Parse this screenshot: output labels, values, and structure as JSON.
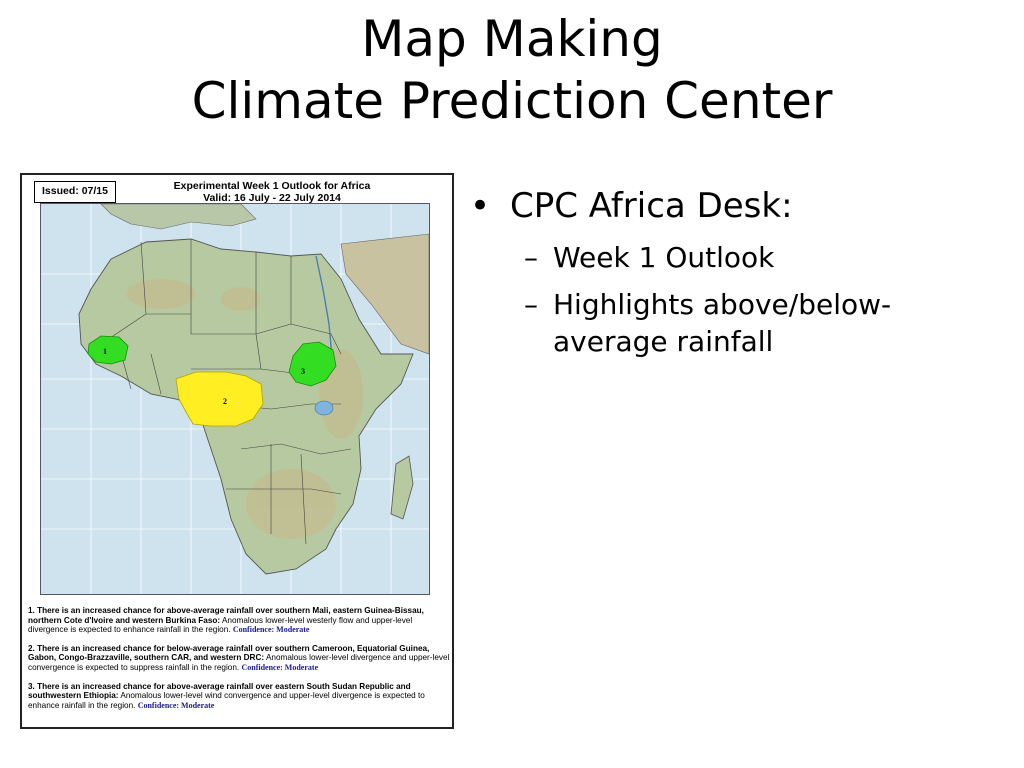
{
  "title": {
    "line1": "Map Making",
    "line2": "Climate Prediction Center"
  },
  "map": {
    "issued": "Issued: 07/15",
    "title_line1": "Experimental Week 1 Outlook for Africa",
    "title_line2": "Valid: 16 July - 22 July 2014",
    "region_labels": [
      "1",
      "2",
      "3"
    ],
    "colors": {
      "above_average": "#33dd22",
      "below_average": "#ffee22",
      "ocean": "#cfe3ef",
      "land": "#b5c9a4"
    },
    "notes": [
      {
        "num": "1.",
        "headline": "There is an increased chance for above-average rainfall over southern Mali, eastern Guinea-Bissau, northern Cote d'Ivoire and western Burkina Faso:",
        "detail": "Anomalous lower-level westerly flow and upper-level divergence is expected to enhance rainfall in the region.",
        "confidence": "Confidence: Moderate"
      },
      {
        "num": "2.",
        "headline": "There is an increased chance for below-average rainfall over southern Cameroon, Equatorial Guinea, Gabon, Congo-Brazzaville, southern CAR, and western DRC:",
        "detail": "Anomalous lower-level divergence and upper-level convergence is expected to suppress rainfall in the region.",
        "confidence": "Confidence: Moderate"
      },
      {
        "num": "3.",
        "headline": "There is an increased chance for above-average rainfall over eastern South Sudan Republic and southwestern Ethiopia:",
        "detail": "Anomalous lower-level wind convergence and upper-level divergence is expected to enhance rainfall in the region.",
        "confidence": "Confidence: Moderate"
      }
    ]
  },
  "bullets": {
    "main": "CPC Africa Desk:",
    "sub": [
      "Week 1 Outlook",
      "Highlights above/below-average rainfall"
    ]
  }
}
